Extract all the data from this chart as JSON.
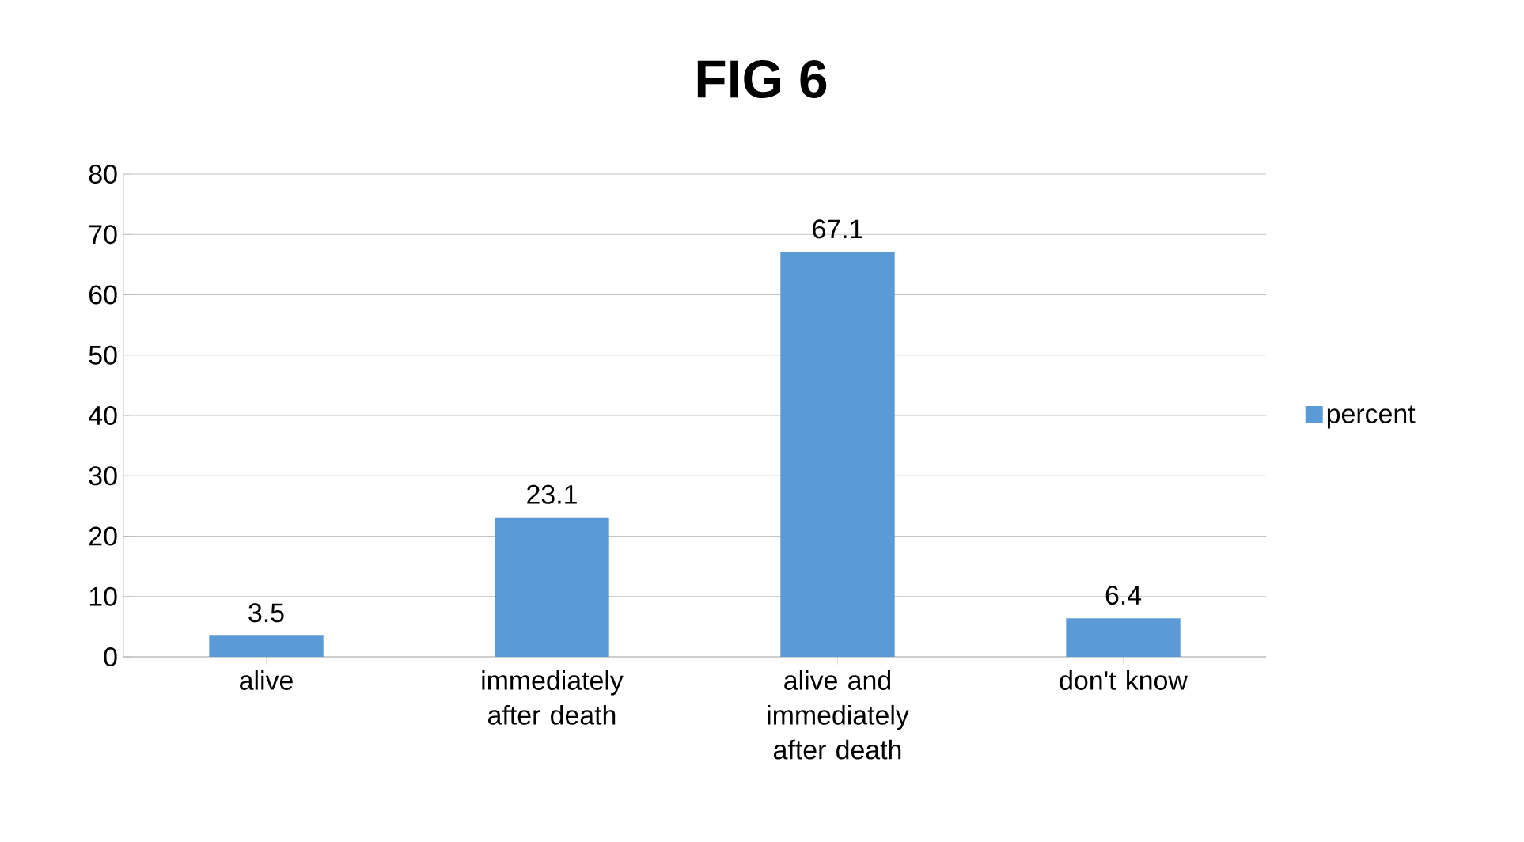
{
  "chart_data": {
    "type": "bar",
    "title": "FIG 6",
    "categories": [
      "alive",
      "immediately after death",
      "alive  and immediately after death",
      "don't know"
    ],
    "series": [
      {
        "name": "percent",
        "color": "#5b9bd5",
        "values": [
          3.5,
          23.1,
          67.1,
          6.4
        ]
      }
    ],
    "ylim": [
      0,
      80
    ],
    "yticks": [
      0,
      10,
      20,
      30,
      40,
      50,
      60,
      70,
      80
    ],
    "grid": "y",
    "legend": "right",
    "data_labels": true
  }
}
